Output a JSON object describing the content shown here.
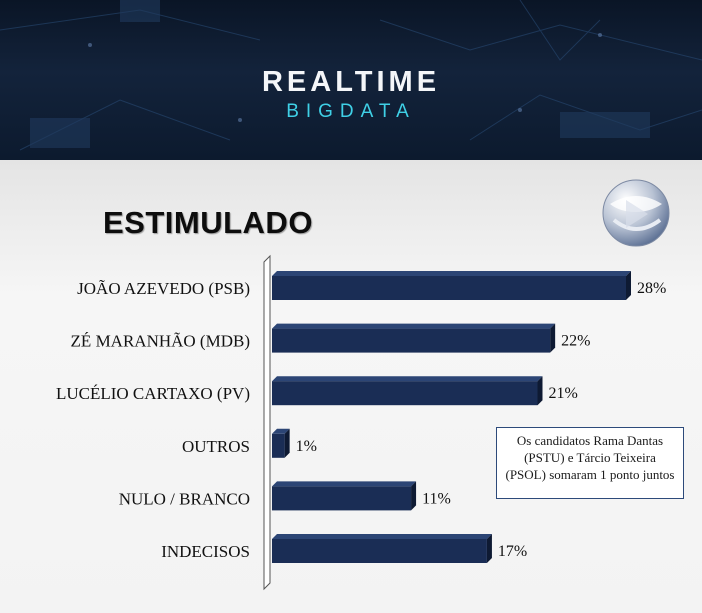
{
  "brand": {
    "top": "REALTIME",
    "bottom": "BIGDATA"
  },
  "chart_data": {
    "type": "bar",
    "orientation": "horizontal",
    "title": "ESTIMULADO",
    "categories": [
      "JOÃO AZEVEDO (PSB)",
      "ZÉ MARANHÃO (MDB)",
      "LUCÉLIO CARTAXO (PV)",
      "OUTROS",
      "NULO / BRANCO",
      "INDECISOS"
    ],
    "values": [
      28,
      22,
      21,
      1,
      11,
      17
    ],
    "value_labels": [
      "28%",
      "22%",
      "21%",
      "1%",
      "11%",
      "17%"
    ],
    "xlim": [
      0,
      28
    ],
    "bar_color": "#1a2d55",
    "grid": false,
    "legend": "none"
  },
  "note": "Os candidatos Rama Dantas (PSTU) e Tárcio Teixeira (PSOL) somaram 1 ponto juntos",
  "colors": {
    "header_bg": "#0c1a2e",
    "brand_accent": "#3fd0e6",
    "bar": "#1a2d55"
  },
  "logo_icon": "record-tv-logo-icon"
}
